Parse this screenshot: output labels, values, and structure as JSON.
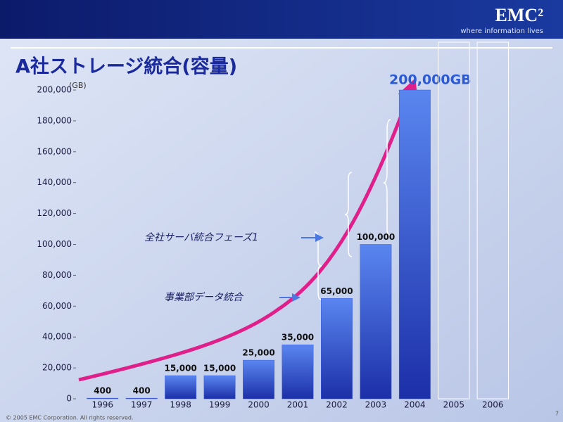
{
  "chart_data": {
    "type": "bar",
    "title": "A社ストレージ統合(容量)",
    "y_unit": "(GB)",
    "categories": [
      "1996",
      "1997",
      "1998",
      "1999",
      "2000",
      "2001",
      "2002",
      "2003",
      "2004",
      "2005",
      "2006"
    ],
    "values": [
      400,
      400,
      15000,
      15000,
      25000,
      35000,
      65000,
      100000,
      200000,
      null,
      null
    ],
    "value_labels": [
      "400",
      "400",
      "15,000",
      "15,000",
      "25,000",
      "35,000",
      "65,000",
      "100,000",
      "200,000GB",
      null,
      null
    ],
    "color": "#3a5ad8",
    "ylim": [
      0,
      200000
    ],
    "yticks": [
      0,
      {
        "value": 20000,
        "label": "20,000"
      },
      {
        "value": 40000,
        "label": "40,000"
      },
      {
        "value": 60000,
        "label": "60,000"
      },
      {
        "value": 80000,
        "label": "80,000"
      },
      {
        "value": 100000,
        "label": "100,000"
      },
      {
        "value": 120000,
        "label": "120,000"
      },
      {
        "value": 140000,
        "label": "140,000"
      },
      {
        "value": 160000,
        "label": "160,000"
      },
      {
        "value": 180000,
        "label": "180,000"
      },
      {
        "value": 200000,
        "label": "200,000"
      }
    ],
    "grid": false,
    "annotations": [
      "全社サーバ統合フェーズ1",
      "事業部データ統合"
    ]
  },
  "brand": {
    "logo": "EMC²",
    "tagline": "where information lives"
  },
  "footer": {
    "copyright": "© 2005 EMC Corporation. All rights reserved.",
    "page": "7"
  }
}
